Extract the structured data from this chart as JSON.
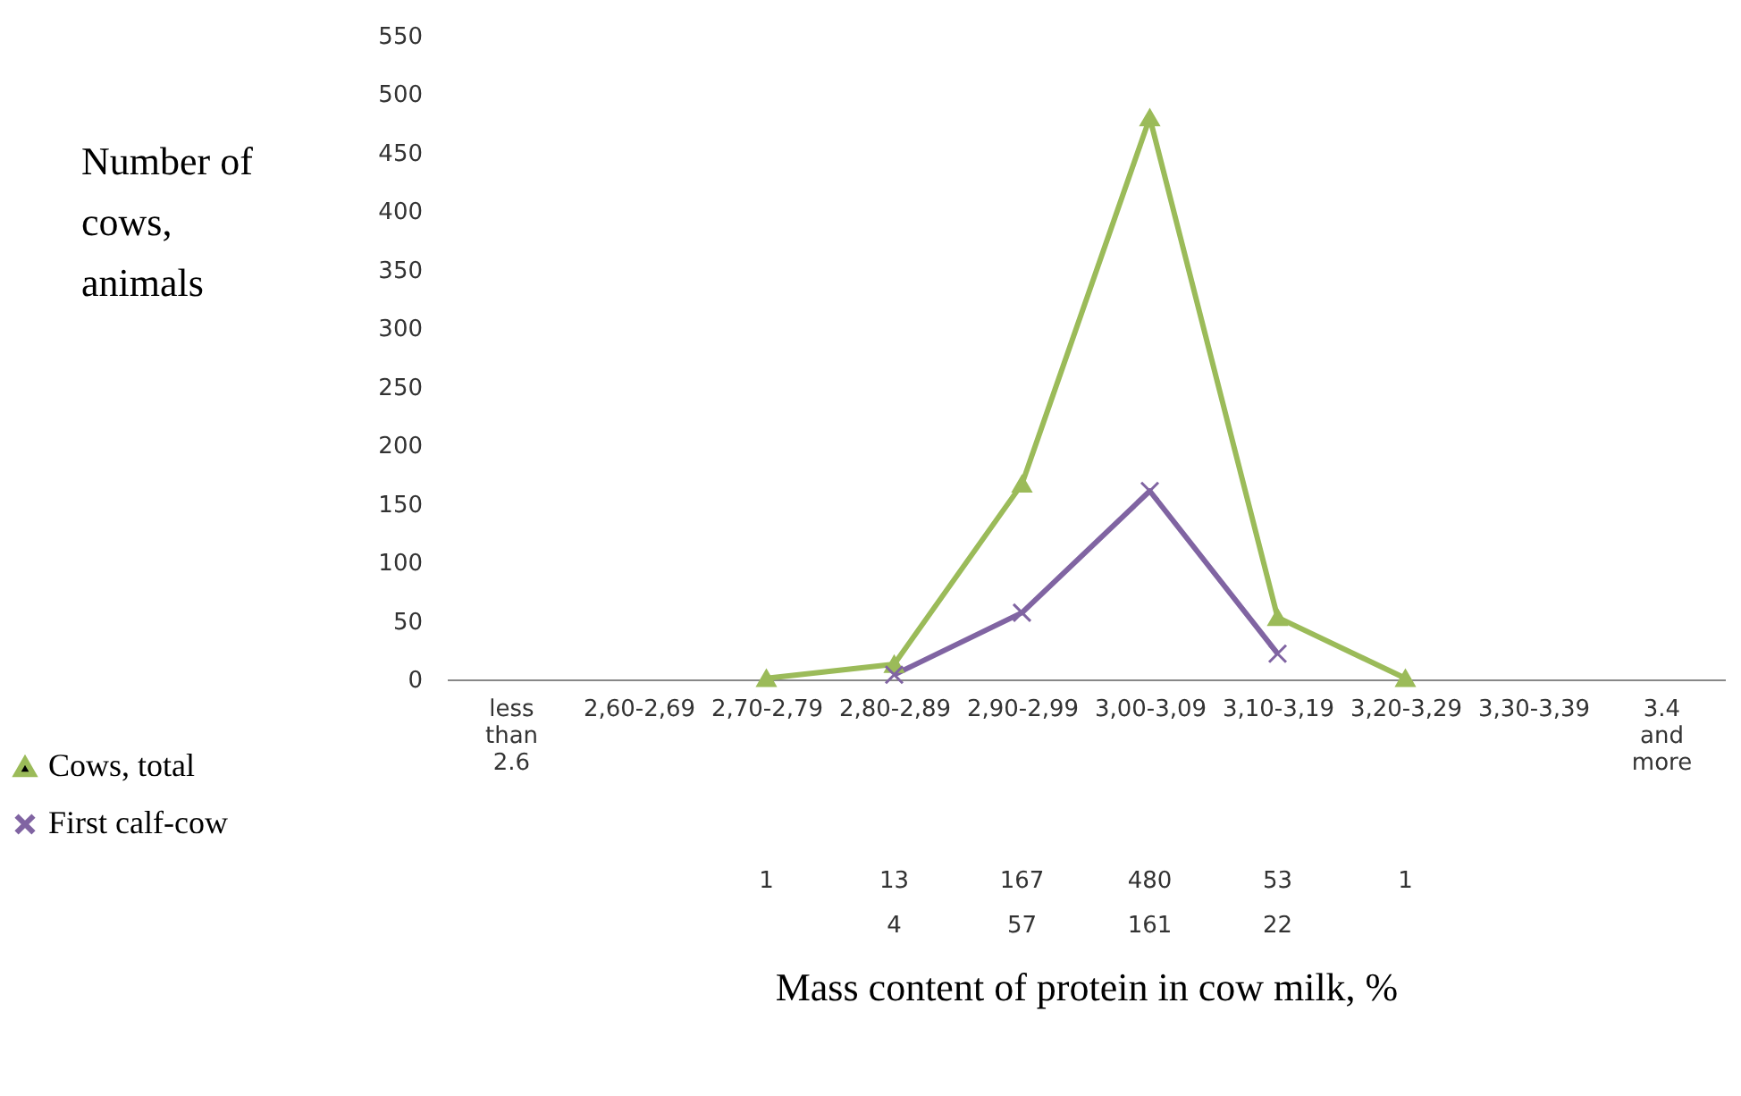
{
  "chart_data": {
    "type": "line",
    "ylabel": "Number of cows, animals",
    "xlabel": "Mass content of protein in cow milk, %",
    "categories": [
      "less than 2.6",
      "2,60-2,69",
      "2,70-2,79",
      "2,80-2,89",
      "2,90-2,99",
      "3,00-3,09",
      "3,10-3,19",
      "3,20-3,29",
      "3,30-3,39",
      "3.4 and more"
    ],
    "series": [
      {
        "name": "Cows, total",
        "color": "#9bbb59",
        "marker": "triangle",
        "values": [
          null,
          null,
          1,
          13,
          167,
          480,
          53,
          1,
          null,
          null
        ]
      },
      {
        "name": "First calf-cow",
        "color": "#8064a2",
        "marker": "cross",
        "values": [
          null,
          null,
          null,
          4,
          57,
          161,
          22,
          null,
          null,
          null
        ]
      }
    ],
    "ylim": [
      0,
      550
    ],
    "yticks": [
      0,
      50,
      100,
      150,
      200,
      250,
      300,
      350,
      400,
      450,
      500,
      550
    ],
    "grid": false,
    "legend": "bottom left",
    "data_labels": true
  }
}
